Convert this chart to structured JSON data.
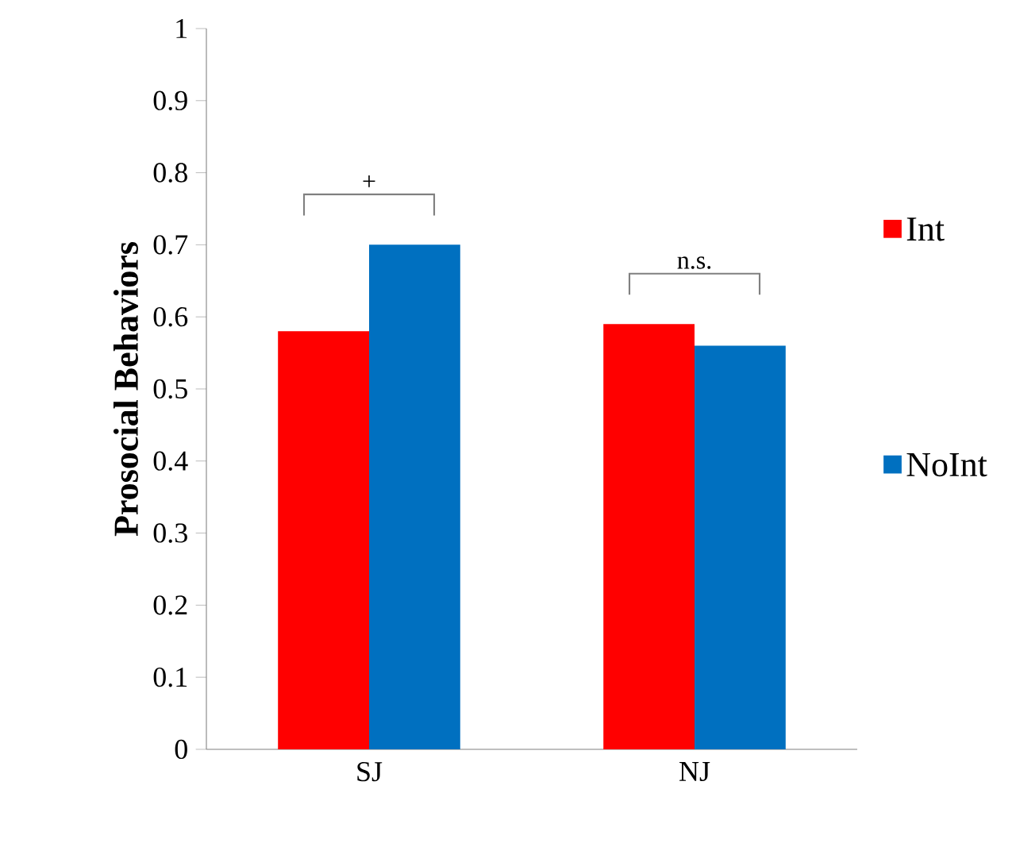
{
  "chart_data": {
    "type": "bar",
    "ylabel": "Prosocial Behaviors",
    "categories": [
      "SJ",
      "NJ"
    ],
    "series": [
      {
        "name": "Int",
        "color": "#ff0000",
        "values": [
          0.58,
          0.59
        ]
      },
      {
        "name": "NoInt",
        "color": "#0070c0",
        "values": [
          0.7,
          0.56
        ]
      }
    ],
    "ylim": [
      0,
      1
    ],
    "yticks": [
      0,
      0.1,
      0.2,
      0.3,
      0.4,
      0.5,
      0.6,
      0.7,
      0.8,
      0.9,
      1
    ],
    "annotations": [
      "+",
      "n.s."
    ],
    "legend": "right",
    "grid": false
  }
}
